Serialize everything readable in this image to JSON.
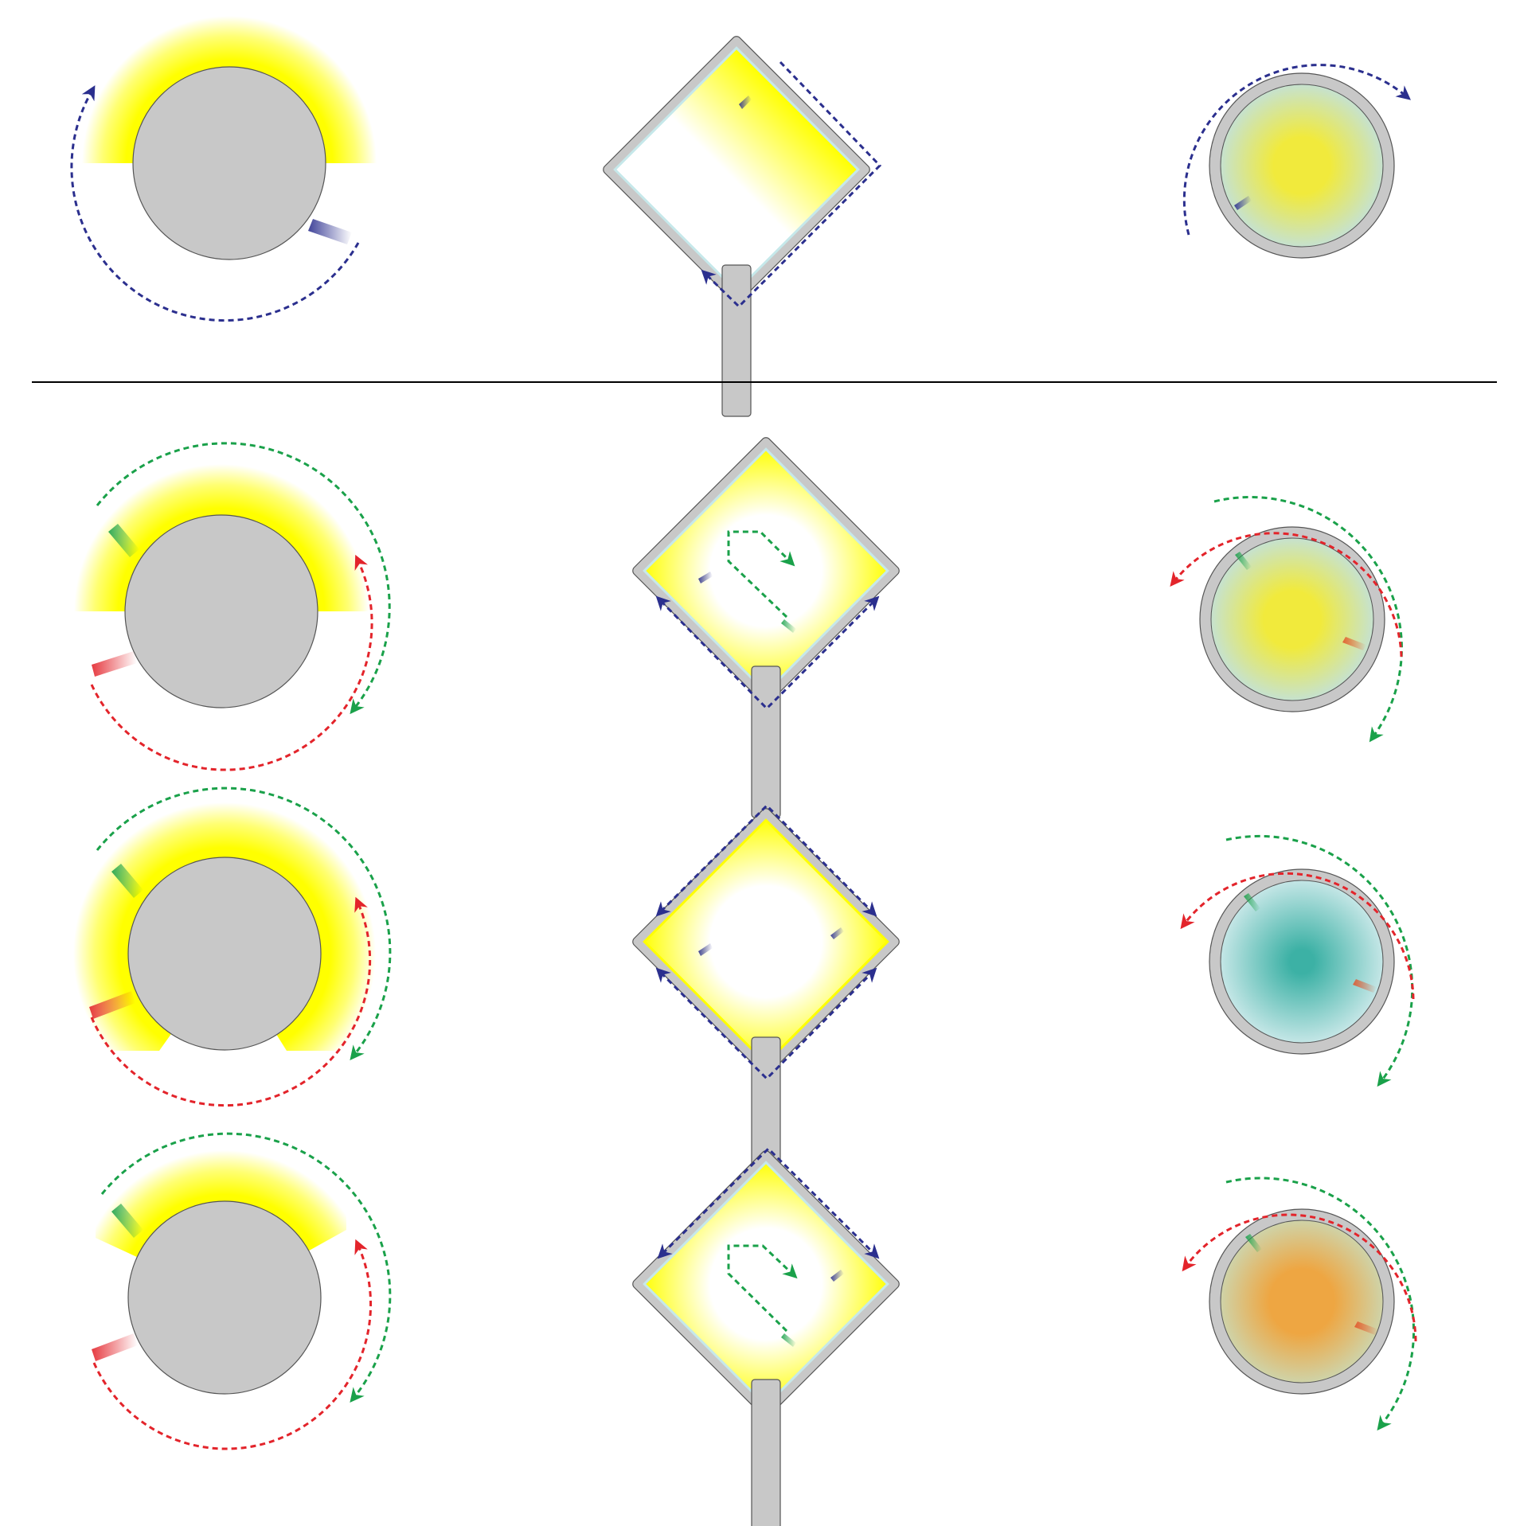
{
  "colors": {
    "background": "#ffffff",
    "body_fill": "#c8c8c8",
    "stroke": "#555555",
    "light_yellow": "#ffff00",
    "screen_yellow": "#f1ea3c",
    "screen_teal": "#3cb1a5",
    "screen_orange": "#eea642",
    "light_cyan": "#c6e8ea",
    "arrow_blue": "#2b2f8e",
    "arrow_red": "#e3242b",
    "arrow_green": "#1aa14a",
    "divider": "#000000"
  },
  "panels": [
    {
      "row": "top",
      "col": "sphere",
      "state": "single-blue-source"
    },
    {
      "row": "top",
      "col": "box",
      "state": "single-blue-source"
    },
    {
      "row": "top",
      "col": "screen",
      "state": "single-blue-source",
      "screen_color": "yellow"
    },
    {
      "row": "1",
      "col": "sphere",
      "state": "red-green-sources"
    },
    {
      "row": "1",
      "col": "box",
      "state": "red-green-sources"
    },
    {
      "row": "1",
      "col": "screen",
      "state": "red-green-sources",
      "screen_color": "yellow"
    },
    {
      "row": "2",
      "col": "sphere",
      "state": "red-green-sources"
    },
    {
      "row": "2",
      "col": "box",
      "state": "red-green-sources"
    },
    {
      "row": "2",
      "col": "screen",
      "state": "red-green-sources",
      "screen_color": "teal"
    },
    {
      "row": "3",
      "col": "sphere",
      "state": "red-green-sources"
    },
    {
      "row": "3",
      "col": "box",
      "state": "red-green-sources"
    },
    {
      "row": "3",
      "col": "screen",
      "state": "red-green-sources",
      "screen_color": "orange"
    }
  ]
}
